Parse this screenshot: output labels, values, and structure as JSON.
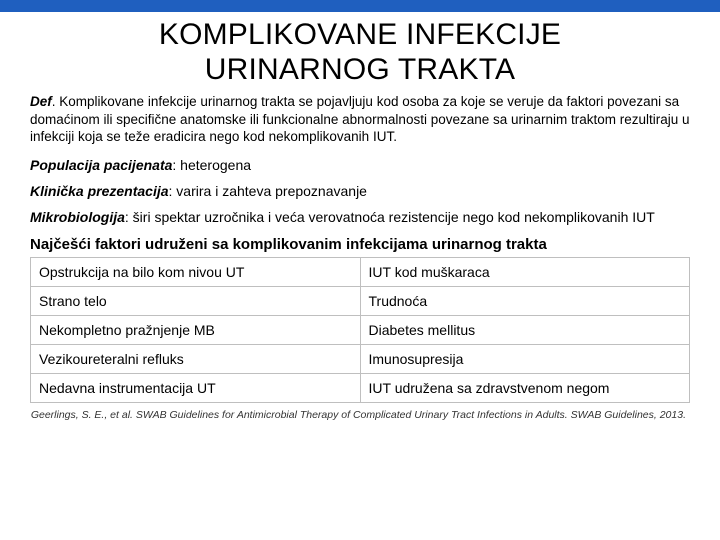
{
  "header_bar_color": "#1f5fbf",
  "title_line1": "KOMPLIKOVANE INFEKCIJE",
  "title_line2": "URINARNOG TRAKTA",
  "def_label": "Def",
  "def_text": ". Komplikovane infekcije urinarnog trakta se pojavljuju kod osoba za koje se veruje da faktori povezani sa domaćinom ili specifične anatomske ili funkcionalne abnormalnosti povezane sa urinarnim traktom rezultiraju u infekciji koja se teže eradicira nego kod nekomplikovanih IUT.",
  "bullets": [
    {
      "label": "Populacija pacijenata",
      "text": ": heterogena"
    },
    {
      "label": "Klinička prezentacija",
      "text": ": varira i zahteva prepoznavanje"
    },
    {
      "label": "Mikrobiologija",
      "text": ": širi spektar uzročnika i veća verovatnoća rezistencije nego kod nekomplikovanih IUT"
    }
  ],
  "table_heading": "Najčešći faktori udruženi sa komplikovanim infekcijama urinarnog trakta",
  "table": {
    "border_color": "#bfbfbf",
    "rows": [
      [
        "Opstrukcija na bilo kom nivou UT",
        "IUT kod muškaraca"
      ],
      [
        "Strano telo",
        "Trudnoća"
      ],
      [
        "Nekompletno pražnjenje MB",
        "Diabetes mellitus"
      ],
      [
        "Vezikoureteralni refluks",
        "Imunosupresija"
      ],
      [
        "Nedavna instrumentacija UT",
        "IUT udružena sa zdravstvenom negom"
      ]
    ]
  },
  "citation": "Geerlings, S. E., et al. SWAB Guidelines for Antimicrobial Therapy of Complicated Urinary Tract Infections in Adults. SWAB Guidelines, 2013."
}
